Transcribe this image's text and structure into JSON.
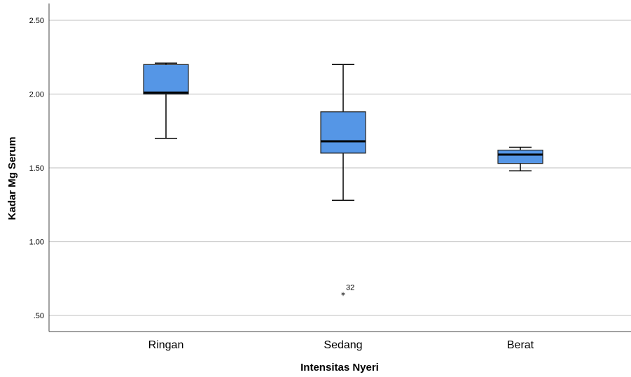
{
  "chart_data": {
    "type": "boxplot",
    "xlabel": "Intensitas Nyeri",
    "ylabel": "Kadar Mg Serum",
    "ylim": [
      0.4,
      2.62
    ],
    "yticks": [
      0.5,
      1.0,
      1.5,
      2.0,
      2.5
    ],
    "ytick_labels": [
      ".50",
      "1.00",
      "1.50",
      "2.00",
      "2.50"
    ],
    "grid": "horizontal",
    "box_color": "#5596e6",
    "categories": [
      "Ringan",
      "Sedang",
      "Berat"
    ],
    "boxes": [
      {
        "category": "Ringan",
        "min": 1.7,
        "q1": 2.0,
        "median": 2.01,
        "q3": 2.2,
        "max": 2.21,
        "outliers": []
      },
      {
        "category": "Sedang",
        "min": 1.28,
        "q1": 1.6,
        "median": 1.68,
        "q3": 1.88,
        "max": 2.2,
        "outliers": [
          {
            "value": 0.64,
            "label": "32",
            "marker": "*"
          }
        ]
      },
      {
        "category": "Berat",
        "min": 1.48,
        "q1": 1.53,
        "median": 1.59,
        "q3": 1.62,
        "max": 1.64,
        "outliers": []
      }
    ]
  }
}
